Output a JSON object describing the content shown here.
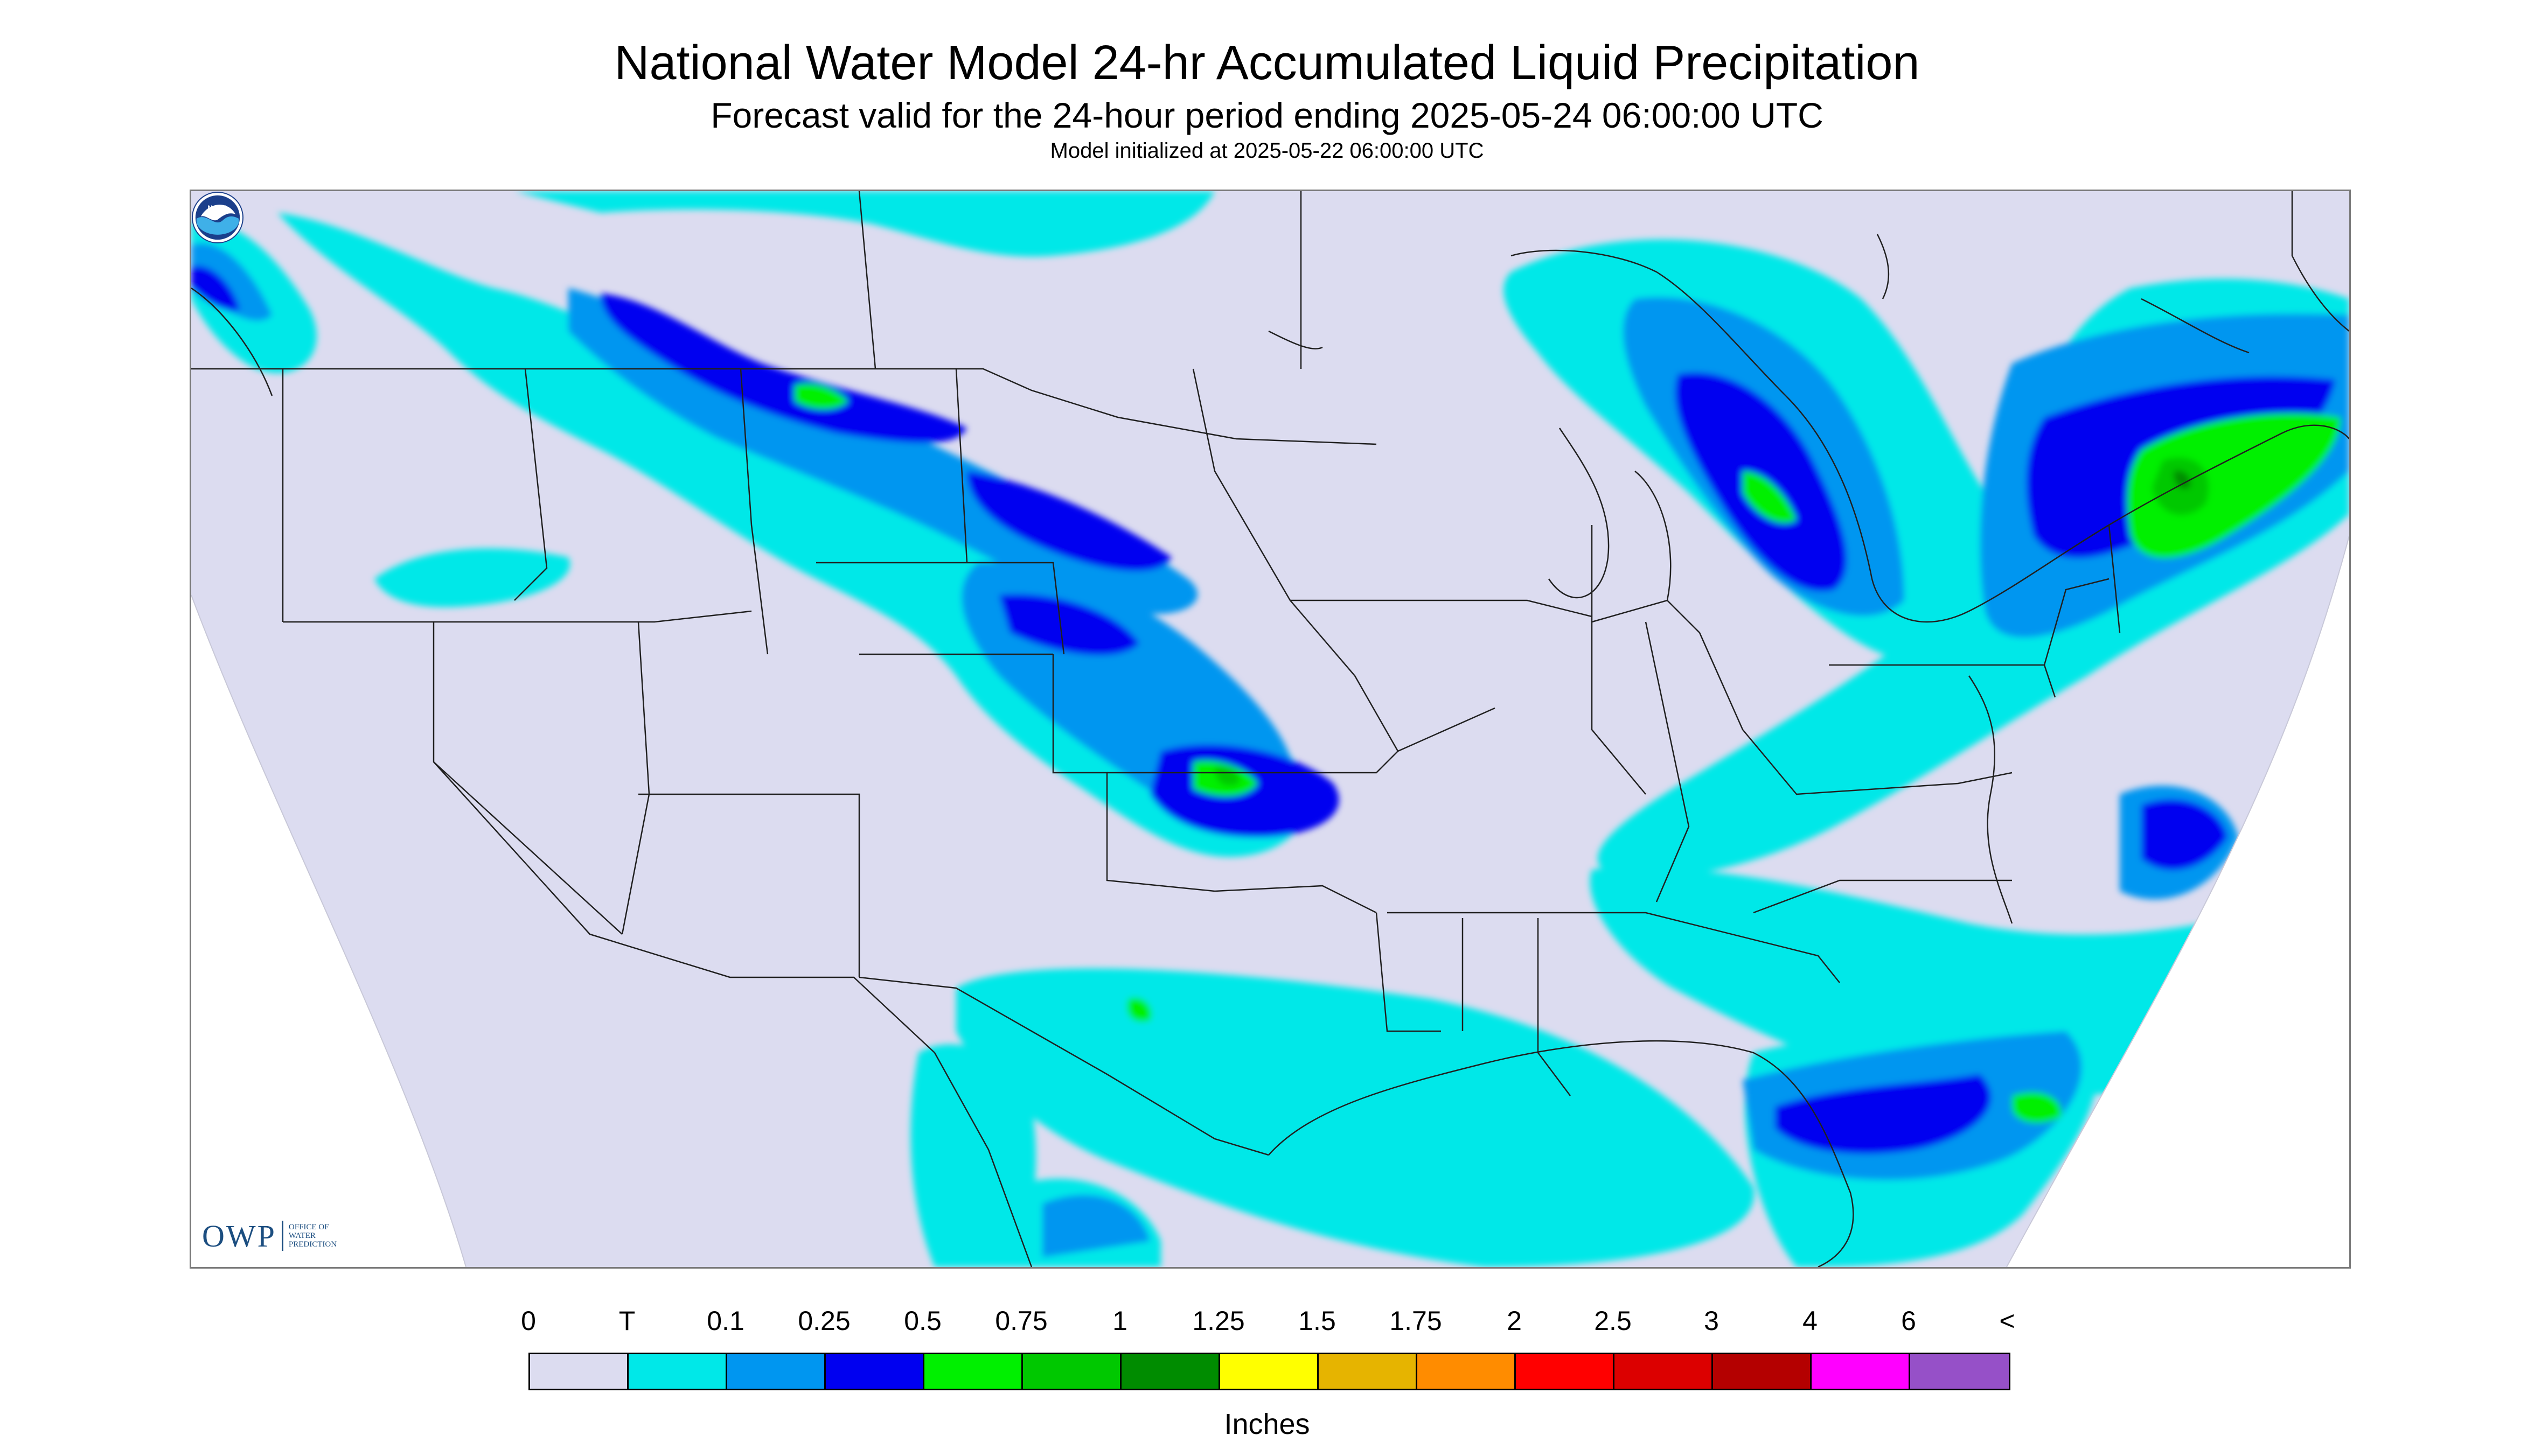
{
  "title": "National Water Model 24-hr Accumulated Liquid Precipitation",
  "subtitle": "Forecast valid for the 24-hour period ending 2025-05-24 06:00:00 UTC",
  "init_line": "Model initialized at 2025-05-22 06:00:00 UTC",
  "owp_logo": {
    "mark": "OWP",
    "text": "OFFICE OF WATER PREDICTION"
  },
  "noaa_logo": {
    "text": "NOAA",
    "icon": "noaa-seal-icon"
  },
  "legend": {
    "labels": [
      "0",
      "T",
      "0.1",
      "0.25",
      "0.5",
      "0.75",
      "1",
      "1.25",
      "1.5",
      "1.75",
      "2",
      "2.5",
      "3",
      "4",
      "6",
      "<"
    ],
    "colors": [
      "#dcdcf0",
      "#00e8e8",
      "#0096f0",
      "#0000f0",
      "#00f000",
      "#00c800",
      "#008c00",
      "#ffff00",
      "#e6b400",
      "#ff8c00",
      "#ff0000",
      "#dc0000",
      "#b40000",
      "#ff00ff",
      "#9650c8"
    ],
    "units": "Inches"
  },
  "map": {
    "background_color": "#dcdcf0",
    "boundary_color": "#202020",
    "levels": [
      "T",
      "0.1",
      "0.25",
      "0.5",
      "0.75",
      "1"
    ]
  }
}
